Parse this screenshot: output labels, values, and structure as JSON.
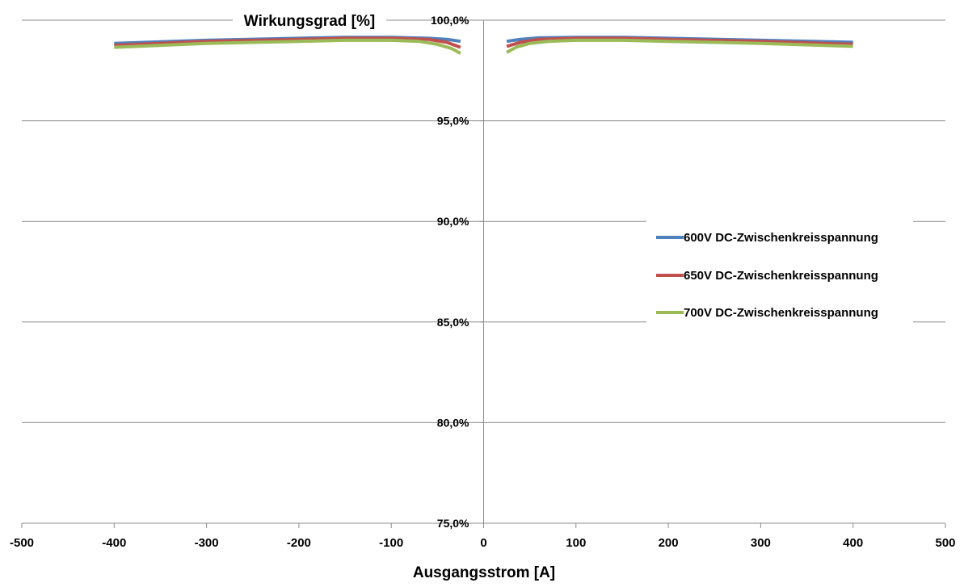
{
  "chart_data": {
    "type": "line",
    "ylabel": "Wirkungsgrad [%]",
    "xlabel": "Ausgangsstrom [A]",
    "xlim": [
      -500,
      500
    ],
    "ylim": [
      75,
      100
    ],
    "x_ticks": [
      "-500",
      "-400",
      "-300",
      "-200",
      "-100",
      "0",
      "100",
      "200",
      "300",
      "400",
      "500"
    ],
    "y_ticks": [
      "75,0%",
      "80,0%",
      "85,0%",
      "90,0%",
      "95,0%",
      "100,0%"
    ],
    "grid": true,
    "legend_position": "right",
    "series": [
      {
        "name": "600V DC-Zwischenkreisspannung",
        "color": "#4F81BD",
        "segments": [
          [
            [
              -400,
              98.85
            ],
            [
              -300,
              99.0
            ],
            [
              -200,
              99.1
            ],
            [
              -150,
              99.15
            ],
            [
              -100,
              99.15
            ],
            [
              -60,
              99.1
            ],
            [
              -40,
              99.05
            ],
            [
              -25,
              98.95
            ]
          ],
          [
            [
              25,
              98.95
            ],
            [
              40,
              99.05
            ],
            [
              60,
              99.12
            ],
            [
              100,
              99.15
            ],
            [
              150,
              99.15
            ],
            [
              200,
              99.1
            ],
            [
              300,
              99.0
            ],
            [
              400,
              98.9
            ]
          ]
        ]
      },
      {
        "name": "650V DC-Zwischenkreisspannung",
        "color": "#C0504D",
        "segments": [
          [
            [
              -400,
              98.75
            ],
            [
              -300,
              98.95
            ],
            [
              -200,
              99.05
            ],
            [
              -150,
              99.1
            ],
            [
              -100,
              99.1
            ],
            [
              -60,
              99.05
            ],
            [
              -40,
              98.9
            ],
            [
              -25,
              98.65
            ]
          ],
          [
            [
              25,
              98.7
            ],
            [
              40,
              98.9
            ],
            [
              60,
              99.05
            ],
            [
              100,
              99.1
            ],
            [
              150,
              99.1
            ],
            [
              200,
              99.05
            ],
            [
              300,
              98.95
            ],
            [
              400,
              98.8
            ]
          ]
        ]
      },
      {
        "name": "700V DC-Zwischenkreisspannung",
        "color": "#9BBB59",
        "segments": [
          [
            [
              -400,
              98.65
            ],
            [
              -300,
              98.85
            ],
            [
              -200,
              98.95
            ],
            [
              -150,
              99.0
            ],
            [
              -100,
              99.0
            ],
            [
              -70,
              98.95
            ],
            [
              -50,
              98.8
            ],
            [
              -35,
              98.6
            ],
            [
              -25,
              98.35
            ]
          ],
          [
            [
              25,
              98.4
            ],
            [
              35,
              98.65
            ],
            [
              50,
              98.85
            ],
            [
              70,
              98.95
            ],
            [
              100,
              99.0
            ],
            [
              150,
              99.0
            ],
            [
              200,
              98.95
            ],
            [
              300,
              98.85
            ],
            [
              400,
              98.7
            ]
          ]
        ]
      }
    ]
  }
}
